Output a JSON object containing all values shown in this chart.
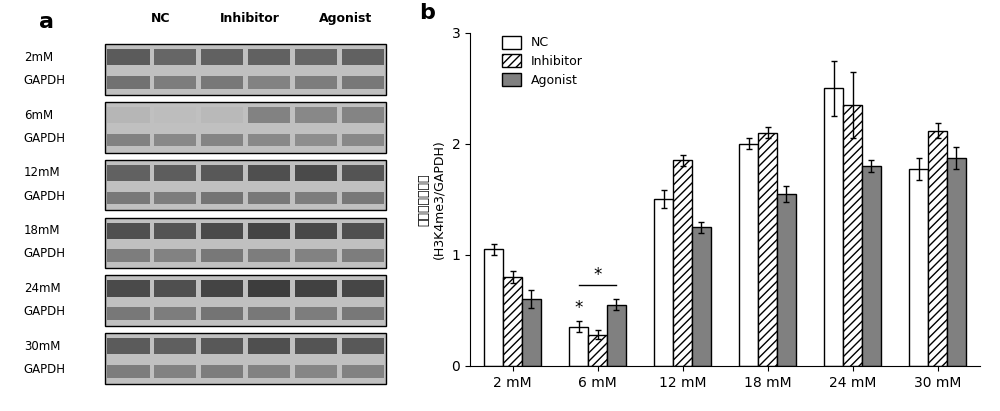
{
  "categories": [
    "2 mM",
    "6 mM",
    "12 mM",
    "18 mM",
    "24 mM",
    "30 mM"
  ],
  "NC_values": [
    1.05,
    0.35,
    1.5,
    2.0,
    2.5,
    1.77
  ],
  "Inhibitor_values": [
    0.8,
    0.28,
    1.85,
    2.1,
    2.35,
    2.12
  ],
  "Agonist_values": [
    0.6,
    0.55,
    1.25,
    1.55,
    1.8,
    1.87
  ],
  "NC_errors": [
    0.05,
    0.05,
    0.08,
    0.05,
    0.25,
    0.1
  ],
  "Inhibitor_errors": [
    0.05,
    0.04,
    0.05,
    0.05,
    0.3,
    0.07
  ],
  "Agonist_errors": [
    0.08,
    0.05,
    0.05,
    0.07,
    0.05,
    0.1
  ],
  "NC_color": "#ffffff",
  "Agonist_color": "#808080",
  "Inhibitor_hatch": "////",
  "bar_edgecolor": "#000000",
  "ylabel_chinese": "蛋白相对表达量",
  "ylabel_english": "(H3K4me3/GAPDH)",
  "ylim": [
    0,
    3
  ],
  "yticks": [
    0,
    1,
    2,
    3
  ],
  "panel_a_label": "a",
  "panel_b_label": "b",
  "bar_width": 0.22,
  "concentrations": [
    "2mM",
    "6mM",
    "12mM",
    "18mM",
    "24mM",
    "30mM"
  ],
  "blot_bg": "#b0b0b0",
  "blot_panel_bg": "#c0c0c0",
  "band_h3k4_intensities": [
    [
      0.55,
      0.5,
      0.52,
      0.52,
      0.5,
      0.52
    ],
    [
      0.15,
      0.12,
      0.14,
      0.38,
      0.35,
      0.37
    ],
    [
      0.52,
      0.54,
      0.56,
      0.6,
      0.62,
      0.58
    ],
    [
      0.6,
      0.58,
      0.62,
      0.65,
      0.63,
      0.6
    ],
    [
      0.62,
      0.6,
      0.65,
      0.68,
      0.66,
      0.64
    ],
    [
      0.55,
      0.53,
      0.56,
      0.6,
      0.58,
      0.56
    ]
  ],
  "band_gapdh_intensities": [
    [
      0.45,
      0.4,
      0.42,
      0.38,
      0.4,
      0.42
    ],
    [
      0.38,
      0.35,
      0.37,
      0.35,
      0.33,
      0.35
    ],
    [
      0.42,
      0.4,
      0.44,
      0.42,
      0.4,
      0.42
    ],
    [
      0.4,
      0.38,
      0.42,
      0.4,
      0.38,
      0.4
    ],
    [
      0.42,
      0.4,
      0.44,
      0.42,
      0.4,
      0.42
    ],
    [
      0.4,
      0.38,
      0.4,
      0.38,
      0.36,
      0.38
    ]
  ]
}
